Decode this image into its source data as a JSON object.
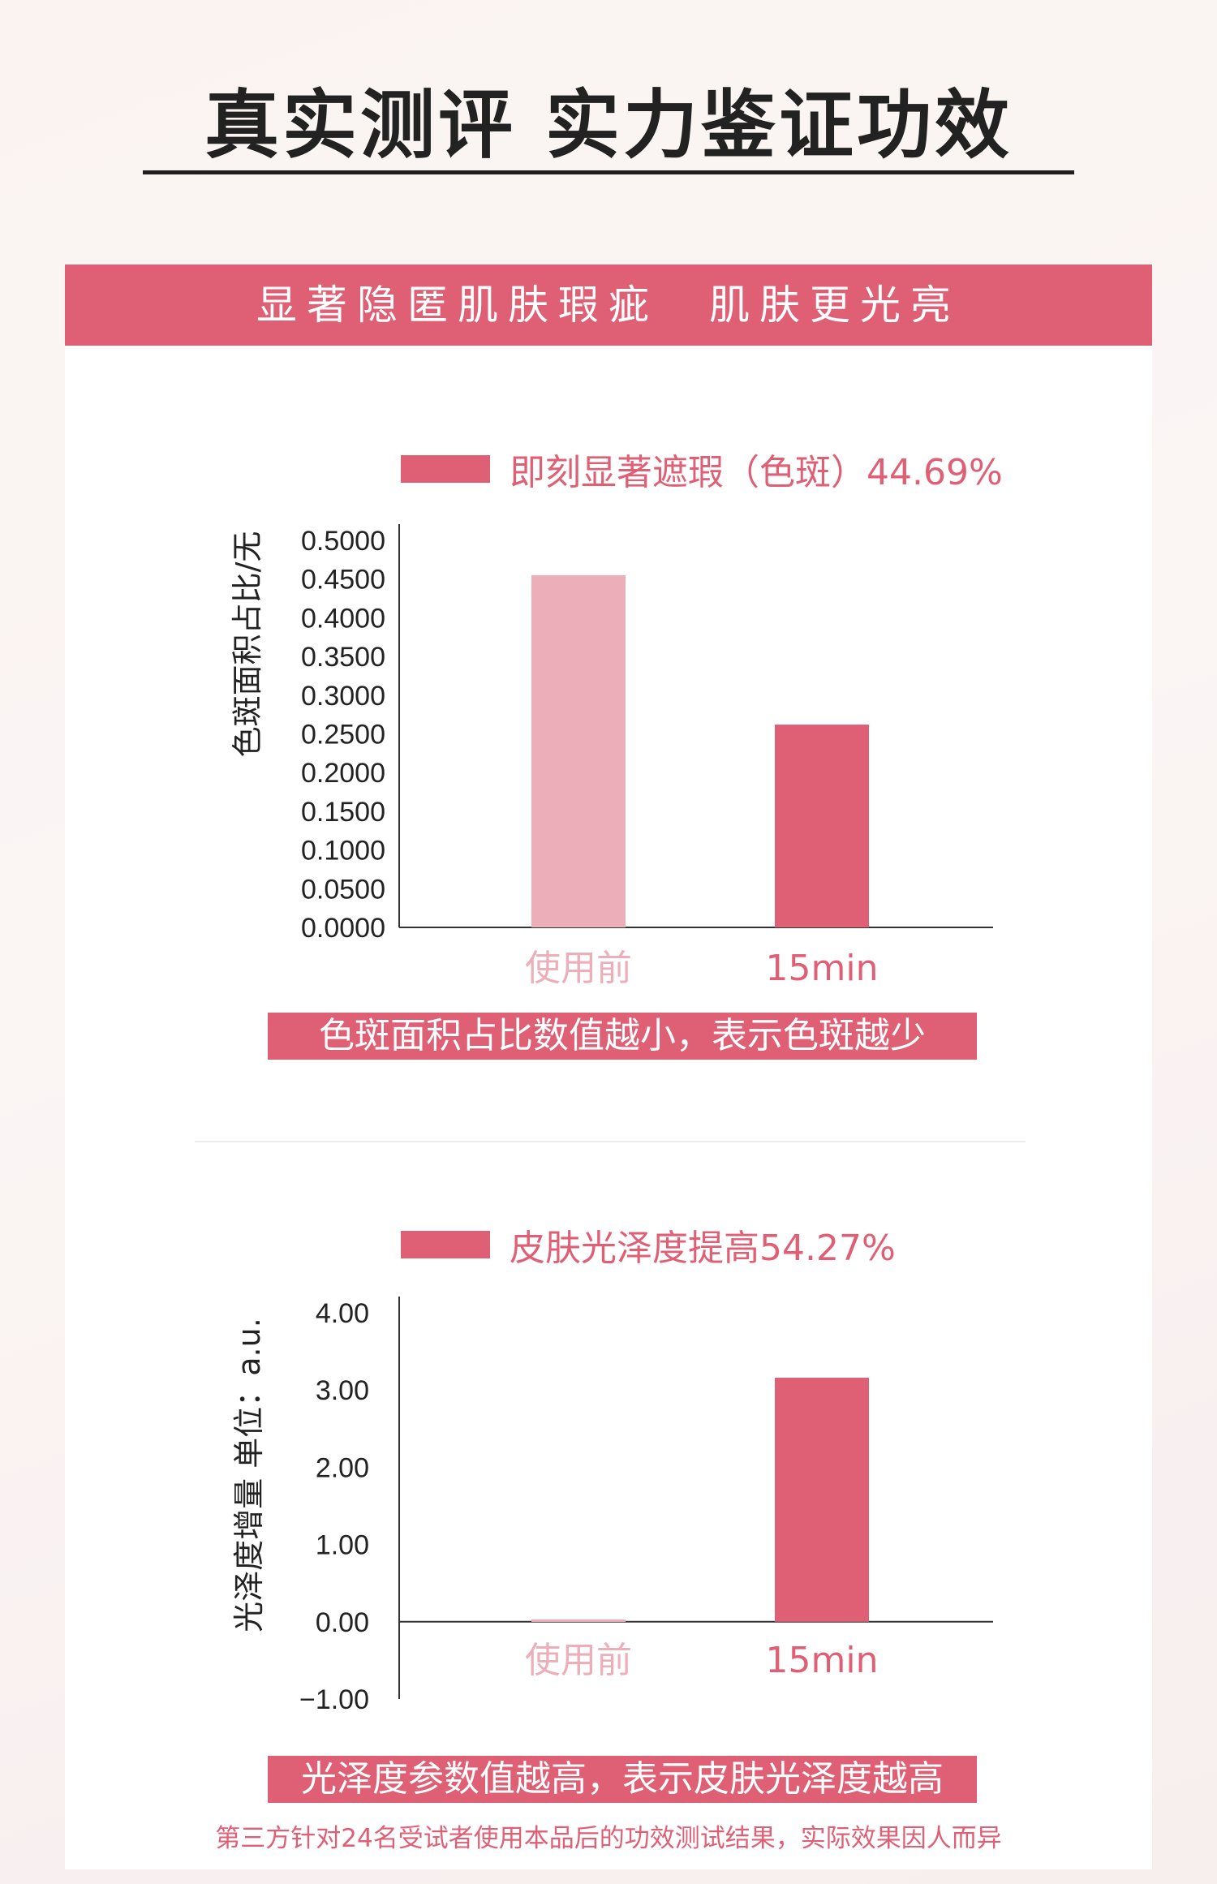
{
  "page": {
    "title": "真实测评 实力鉴证功效",
    "banner": "显著隐匿肌肤瑕疵　肌肤更光亮",
    "footnote": "第三方针对24名受试者使用本品后的功效测试结果，实际效果因人而异"
  },
  "colors": {
    "accent": "#df5f74",
    "accent_light": "#ecafb9",
    "text_dark": "#222222"
  },
  "chart_data": [
    {
      "type": "bar",
      "legend": "即刻显著遮瑕（色斑）44.69%",
      "ylabel": "色斑面积占比/无",
      "categories": [
        "使用前",
        "15min"
      ],
      "values": [
        0.455,
        0.262
      ],
      "ylim": [
        0,
        0.5
      ],
      "yticks": [
        "0.5000",
        "0.4500",
        "0.4000",
        "0.3500",
        "0.3000",
        "0.2500",
        "0.2000",
        "0.1500",
        "0.1000",
        "0.0500",
        "0.0000"
      ],
      "note": "色斑面积占比数值越小，表示色斑越少",
      "grid": false,
      "legend_position": "top"
    },
    {
      "type": "bar",
      "legend": "皮肤光泽度提高54.27%",
      "ylabel": "光泽度增量 单位：a.u.",
      "categories": [
        "使用前",
        "15min"
      ],
      "values": [
        0.03,
        3.16
      ],
      "ylim": [
        -1,
        4
      ],
      "yticks": [
        "4.00",
        "3.00",
        "2.00",
        "1.00",
        "0.00",
        "−1.00"
      ],
      "note": "光泽度参数值越高，表示皮肤光泽度越高",
      "grid": false,
      "legend_position": "top"
    }
  ]
}
